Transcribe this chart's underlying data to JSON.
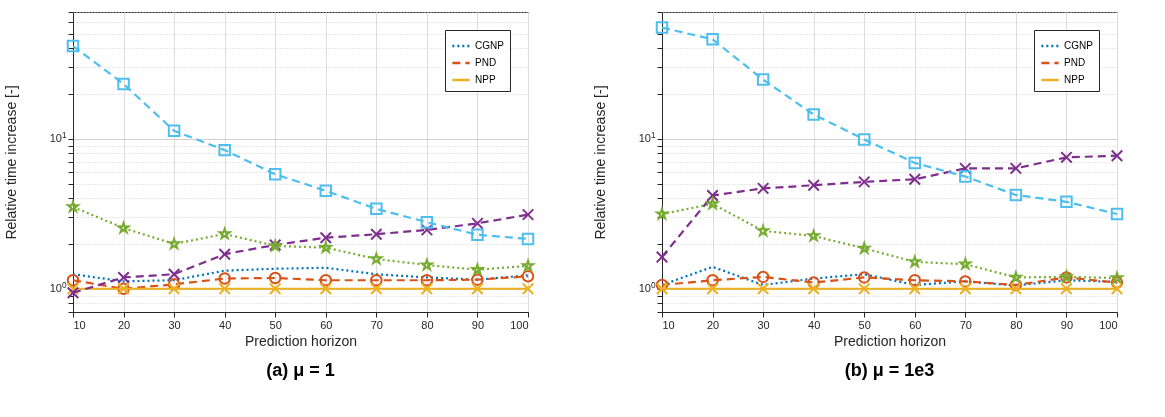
{
  "chart_data": [
    {
      "type": "line",
      "title": "(a) μ = 1",
      "xlabel": "Prediction horizon",
      "ylabel": "Relative time increase [-]",
      "log": "y",
      "grid": true,
      "legend": "top right",
      "x": [
        10,
        20,
        30,
        40,
        50,
        60,
        70,
        80,
        90,
        100
      ],
      "xlim": [
        10,
        100
      ],
      "xticks": [
        10,
        20,
        30,
        40,
        50,
        60,
        70,
        80,
        90,
        100
      ],
      "ylim": [
        0.7,
        70
      ],
      "yticks": [
        {
          "value": 0.7,
          "label": null
        },
        {
          "value": 0.8,
          "label": null
        },
        {
          "value": 0.9,
          "label": null
        },
        {
          "value": 1,
          "label": "10$^{0}$"
        },
        {
          "value": 2,
          "label": null
        },
        {
          "value": 3,
          "label": null
        },
        {
          "value": 4,
          "label": null
        },
        {
          "value": 5,
          "label": null
        },
        {
          "value": 6,
          "label": null
        },
        {
          "value": 7,
          "label": null
        },
        {
          "value": 8,
          "label": null
        },
        {
          "value": 9,
          "label": null
        },
        {
          "value": 10,
          "label": "10$^{1}$"
        },
        {
          "value": 20,
          "label": null
        },
        {
          "value": 30,
          "label": null
        },
        {
          "value": 40,
          "label": null
        },
        {
          "value": 50,
          "label": null
        },
        {
          "value": 60,
          "label": null
        },
        {
          "value": 70,
          "label": null
        }
      ],
      "series": [
        {
          "name": "CGNP",
          "color": "#0072bd",
          "line_style": "dotted",
          "marker": "none",
          "values": [
            1.25,
            1.12,
            1.14,
            1.32,
            1.36,
            1.38,
            1.25,
            1.19,
            1.15,
            1.23
          ]
        },
        {
          "name": "PND",
          "color": "#d95319",
          "line_style": "dashed",
          "marker": "circle",
          "values": [
            1.14,
            1.0,
            1.07,
            1.17,
            1.18,
            1.14,
            1.14,
            1.14,
            1.15,
            1.21
          ]
        },
        {
          "name": "NPP",
          "color": "#edb120",
          "line_style": "solid",
          "marker": "cross",
          "values": [
            1,
            1,
            1,
            1,
            1,
            1,
            1,
            1,
            1,
            1
          ]
        },
        {
          "color": "#7e2f8e",
          "line_style": "dashed",
          "marker": "cross",
          "values": [
            0.94,
            1.19,
            1.25,
            1.7,
            1.96,
            2.19,
            2.31,
            2.47,
            2.73,
            3.12
          ]
        },
        {
          "color": "#77ac30",
          "line_style": "dotted",
          "marker": "star",
          "values": [
            3.51,
            2.54,
            1.99,
            2.32,
            1.93,
            1.88,
            1.58,
            1.44,
            1.34,
            1.42
          ]
        },
        {
          "color": "#4dbeee",
          "line_style": "dashed",
          "marker": "square",
          "values": [
            41.5,
            23.2,
            11.3,
            8.4,
            5.8,
            4.5,
            3.41,
            2.78,
            2.29,
            2.15
          ]
        }
      ]
    },
    {
      "type": "line",
      "title": "(b) μ = 1e3",
      "xlabel": "Prediction horizon",
      "ylabel": "Relative time increase [-]",
      "log": "y",
      "grid": true,
      "legend": "top right",
      "x": [
        10,
        20,
        30,
        40,
        50,
        60,
        70,
        80,
        90,
        100
      ],
      "xlim": [
        10,
        100
      ],
      "xticks": [
        10,
        20,
        30,
        40,
        50,
        60,
        70,
        80,
        90,
        100
      ],
      "ylim": [
        0.7,
        70
      ],
      "yticks": [
        {
          "value": 0.7,
          "label": null
        },
        {
          "value": 0.8,
          "label": null
        },
        {
          "value": 0.9,
          "label": null
        },
        {
          "value": 1,
          "label": "10$^{0}$"
        },
        {
          "value": 2,
          "label": null
        },
        {
          "value": 3,
          "label": null
        },
        {
          "value": 4,
          "label": null
        },
        {
          "value": 5,
          "label": null
        },
        {
          "value": 6,
          "label": null
        },
        {
          "value": 7,
          "label": null
        },
        {
          "value": 8,
          "label": null
        },
        {
          "value": 9,
          "label": null
        },
        {
          "value": 10,
          "label": "10$^{1}$"
        },
        {
          "value": 20,
          "label": null
        },
        {
          "value": 30,
          "label": null
        },
        {
          "value": 40,
          "label": null
        },
        {
          "value": 50,
          "label": null
        },
        {
          "value": 60,
          "label": null
        },
        {
          "value": 70,
          "label": null
        }
      ],
      "series": [
        {
          "name": "CGNP",
          "color": "#0072bd",
          "line_style": "dotted",
          "marker": "none",
          "values": [
            1.06,
            1.4,
            1.06,
            1.17,
            1.25,
            1.06,
            1.12,
            1.05,
            1.14,
            1.11
          ]
        },
        {
          "name": "PND",
          "color": "#d95319",
          "line_style": "dashed",
          "marker": "circle",
          "values": [
            1.06,
            1.14,
            1.2,
            1.1,
            1.19,
            1.14,
            1.12,
            1.06,
            1.19,
            1.1
          ]
        },
        {
          "name": "NPP",
          "color": "#edb120",
          "line_style": "solid",
          "marker": "cross",
          "values": [
            1,
            1,
            1,
            1,
            1,
            1,
            1,
            1,
            1,
            1
          ]
        },
        {
          "color": "#7e2f8e",
          "line_style": "dashed",
          "marker": "cross",
          "values": [
            1.63,
            4.19,
            4.67,
            4.9,
            5.16,
            5.37,
            6.35,
            6.35,
            7.52,
            7.71
          ]
        },
        {
          "color": "#77ac30",
          "line_style": "dotted",
          "marker": "star",
          "values": [
            3.15,
            3.68,
            2.43,
            2.25,
            1.86,
            1.51,
            1.46,
            1.19,
            1.2,
            1.18
          ]
        },
        {
          "color": "#4dbeee",
          "line_style": "dashed",
          "marker": "square",
          "values": [
            55.1,
            46.0,
            24.8,
            14.5,
            9.9,
            6.9,
            5.6,
            4.22,
            3.8,
            3.15
          ]
        }
      ]
    }
  ]
}
